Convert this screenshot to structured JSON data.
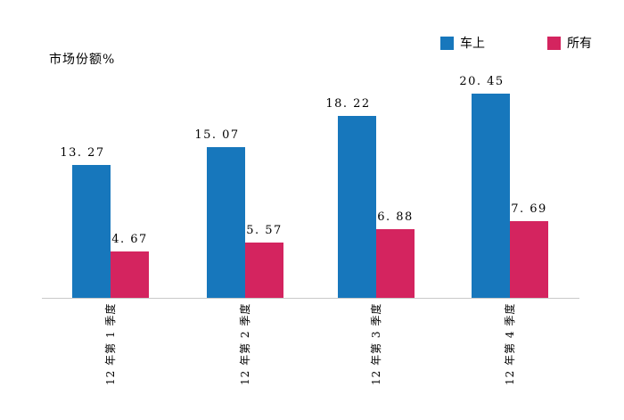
{
  "chart_data": {
    "type": "bar",
    "title": "",
    "ylabel": "市场份额%",
    "xlabel": "",
    "categories": [
      "12 年第 1 季度",
      "12 年第 2 季度",
      "12 年第 3 季度",
      "12 年第 4 季度"
    ],
    "series": [
      {
        "name": "车上",
        "color": "#1777bc",
        "values": [
          13.27,
          15.07,
          18.22,
          20.45
        ],
        "labels": [
          "13. 27",
          "15. 07",
          "18. 22",
          "20. 45"
        ]
      },
      {
        "name": "所有",
        "color": "#d4245f",
        "values": [
          4.67,
          5.57,
          6.88,
          7.69
        ],
        "labels": [
          "4. 67",
          "5. 57",
          "6. 88",
          "7. 69"
        ]
      }
    ],
    "ylim": [
      0,
      22
    ],
    "gridlines": false,
    "y_axis_ticks": "none",
    "bar_value_labels": true,
    "legend_position": "top-right",
    "x_tick_rotation": 90,
    "axis_line_color": "#c9c9c9",
    "background_color": "#ffffff"
  }
}
